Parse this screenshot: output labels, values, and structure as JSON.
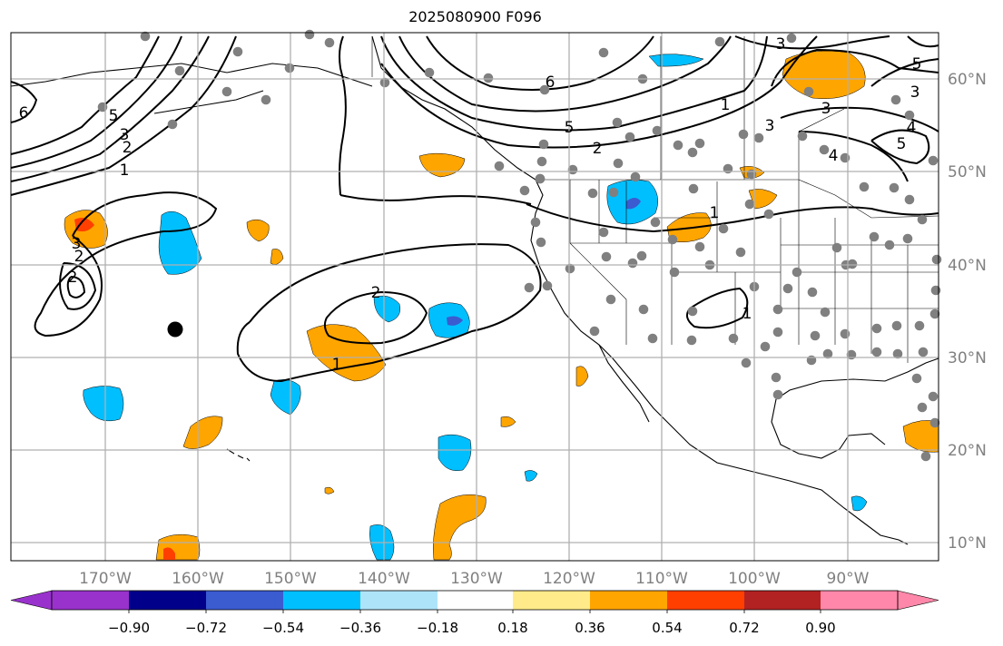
{
  "title": "2025080900 F096",
  "map": {
    "longitude_labels": [
      "170°W",
      "160°W",
      "150°W",
      "140°W",
      "130°W",
      "120°W",
      "110°W",
      "100°W",
      "90°W"
    ],
    "latitude_labels": [
      "60°N",
      "50°N",
      "40°N",
      "30°N",
      "20°N",
      "10°N"
    ],
    "contour_labels": [
      "6",
      "5",
      "3",
      "2",
      "1",
      "6",
      "5",
      "2",
      "3",
      "2",
      "1",
      "2",
      "1",
      "1",
      "3",
      "5",
      "3",
      "4",
      "5",
      "4",
      "3",
      "1",
      "2",
      "3"
    ],
    "colors": {
      "negative_fill": "#00bfff",
      "strong_negative_fill": "#3b5bd1",
      "positive_fill": "#ffa500",
      "strong_positive_fill": "#ff3f00",
      "station_dot": "#808080",
      "marker": "#000000",
      "grid": "#b0b0b0"
    }
  },
  "colorbar": {
    "tick_labels": [
      "−0.90",
      "−0.72",
      "−0.54",
      "−0.36",
      "−0.18",
      "0.18",
      "0.36",
      "0.54",
      "0.72",
      "0.90"
    ],
    "colors": [
      "#9932cc",
      "#00008b",
      "#3b5bd1",
      "#00bfff",
      "#aee4fa",
      "#ffffff",
      "#ffeb8a",
      "#ffa500",
      "#ff3f00",
      "#b22222",
      "#ff88aa"
    ]
  }
}
